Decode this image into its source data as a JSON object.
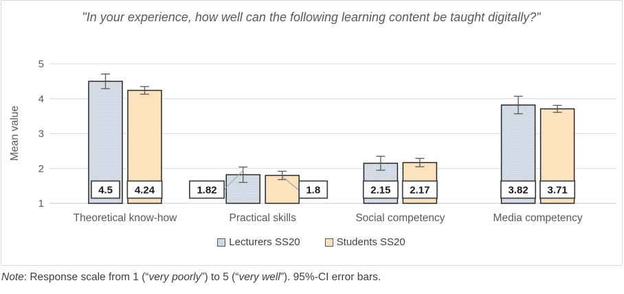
{
  "chart_data": {
    "type": "bar",
    "title": "\"In your experience, how well can the following learning content be taught digitally?\"",
    "ylabel": "Mean value",
    "ylim": [
      1,
      5
    ],
    "yticks": [
      "1",
      "2",
      "3",
      "4",
      "5"
    ],
    "grid": true,
    "legend_position": "bottom",
    "categories": [
      "Theoretical know-how",
      "Practical skills",
      "Social competency",
      "Media competency"
    ],
    "series": [
      {
        "name": "Lecturers SS20",
        "color": "#CBD5E1",
        "pattern": "dotted",
        "values": [
          4.5,
          1.82,
          2.15,
          3.82
        ],
        "labels": [
          "4.5",
          "1.82",
          "2.15",
          "3.82"
        ],
        "ci_lower": [
          4.29,
          1.6,
          1.95,
          3.57
        ],
        "ci_upper": [
          4.71,
          2.04,
          2.35,
          4.07
        ]
      },
      {
        "name": "Students SS20",
        "color": "#FCE3BE",
        "pattern": "solid",
        "values": [
          4.24,
          1.8,
          2.17,
          3.71
        ],
        "labels": [
          "4.24",
          "1.8",
          "2.17",
          "3.71"
        ],
        "ci_lower": [
          4.13,
          1.68,
          2.05,
          3.61
        ],
        "ci_upper": [
          4.35,
          1.92,
          2.29,
          3.81
        ]
      }
    ],
    "colors": {
      "grid": "#D9D9D9",
      "axis": "#CFCFCF",
      "bar_border": "#262626",
      "error_bar": "#595959",
      "leader_line": "#A6A6A6",
      "label_box_border": "#404040",
      "text": "#595959"
    }
  },
  "note": {
    "segments": [
      {
        "text": "Note",
        "italic": true
      },
      {
        "text": ": Response scale from 1 (“",
        "italic": false
      },
      {
        "text": "very poorly",
        "italic": true
      },
      {
        "text": "”) to 5 (“",
        "italic": false
      },
      {
        "text": "very well",
        "italic": true
      },
      {
        "text": "”). 95%-CI error bars.",
        "italic": false
      }
    ]
  }
}
